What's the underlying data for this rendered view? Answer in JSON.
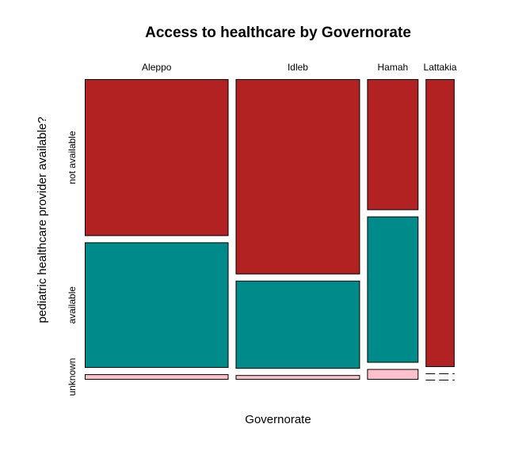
{
  "chart_data": {
    "type": "mosaic",
    "title": "Access to healthcare by Governorate",
    "xlabel": "Governorate",
    "ylabel": "pediatric healthcare provider available?",
    "categories": [
      "Aleppo",
      "Idleb",
      "Hamah",
      "Lattakia"
    ],
    "column_proportions": [
      0.392,
      0.339,
      0.14,
      0.079
    ],
    "row_categories": [
      "not available",
      "available",
      "unknown"
    ],
    "series": [
      {
        "name": "not available",
        "color": "#B22222",
        "values": [
          0.545,
          0.678,
          0.455,
          1.0
        ]
      },
      {
        "name": "available",
        "color": "#008B8B",
        "values": [
          0.436,
          0.306,
          0.508,
          0.0
        ]
      },
      {
        "name": "unknown",
        "color": "#FFC0CB",
        "values": [
          0.019,
          0.016,
          0.037,
          0.0
        ]
      }
    ],
    "grid": false,
    "legend": "none"
  }
}
